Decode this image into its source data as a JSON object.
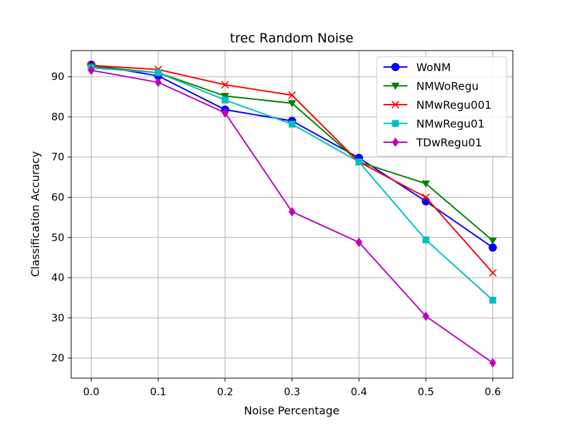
{
  "chart_data": {
    "type": "line",
    "title": "trec Random Noise",
    "xlabel": "Noise Percentage",
    "ylabel": "Classification Accuracy",
    "x": [
      0.0,
      0.1,
      0.2,
      0.3,
      0.4,
      0.5,
      0.6
    ],
    "x_tick_labels": [
      "0.0",
      "0.1",
      "0.2",
      "0.3",
      "0.4",
      "0.5",
      "0.6"
    ],
    "y_ticks": [
      20,
      30,
      40,
      50,
      60,
      70,
      80,
      90
    ],
    "xlim": [
      -0.03,
      0.63
    ],
    "ylim": [
      15,
      96.5
    ],
    "grid": true,
    "legend_position": "top-right",
    "series": [
      {
        "name": "WoNM",
        "color": "#0000ff",
        "marker": "circle",
        "values": [
          93.0,
          90.2,
          81.8,
          79.0,
          69.8,
          59.0,
          47.5
        ]
      },
      {
        "name": "NMWoRegu",
        "color": "#008000",
        "marker": "triangle-down",
        "values": [
          92.6,
          91.0,
          85.2,
          83.4,
          68.8,
          63.4,
          49.2
        ]
      },
      {
        "name": "NMwRegu001",
        "color": "#ff0000",
        "marker": "x",
        "values": [
          92.8,
          91.8,
          88.0,
          85.4,
          68.8,
          60.0,
          41.2
        ]
      },
      {
        "name": "NMwRegu01",
        "color": "#00bfbf",
        "marker": "square",
        "values": [
          92.2,
          91.0,
          84.2,
          78.2,
          68.8,
          49.4,
          34.4
        ]
      },
      {
        "name": "TDwRegu01",
        "color": "#bf00bf",
        "marker": "diamond",
        "values": [
          91.6,
          88.6,
          81.0,
          56.4,
          48.8,
          30.4,
          18.8
        ]
      }
    ]
  }
}
